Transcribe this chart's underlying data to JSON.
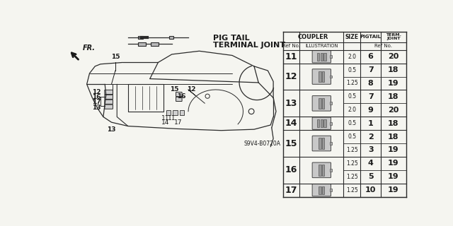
{
  "title1": "PIG TAIL",
  "title2": "TERMINAL JOINT",
  "diagram_code": "S9V4-B0720A",
  "bg_color": "#f5f5f0",
  "text_color": "#1a1a1a",
  "line_color": "#2a2a2a",
  "groups": [
    {
      "ref": "11",
      "sizes": [
        "2.0"
      ],
      "pigtails": [
        "6"
      ],
      "terms": [
        "20"
      ]
    },
    {
      "ref": "12",
      "sizes": [
        "0.5",
        "1.25"
      ],
      "pigtails": [
        "7",
        "8"
      ],
      "terms": [
        "18",
        "19"
      ]
    },
    {
      "ref": "13",
      "sizes": [
        "0.5",
        "2.0"
      ],
      "pigtails": [
        "7",
        "9"
      ],
      "terms": [
        "18",
        "20"
      ]
    },
    {
      "ref": "14",
      "sizes": [
        "0.5"
      ],
      "pigtails": [
        "1"
      ],
      "terms": [
        "18"
      ]
    },
    {
      "ref": "15",
      "sizes": [
        "0.5",
        "1.25"
      ],
      "pigtails": [
        "2",
        "3"
      ],
      "terms": [
        "18",
        "19"
      ]
    },
    {
      "ref": "16",
      "sizes": [
        "1.25",
        "1.25"
      ],
      "pigtails": [
        "4",
        "5"
      ],
      "terms": [
        "19",
        "19"
      ]
    },
    {
      "ref": "17",
      "sizes": [
        "1.25"
      ],
      "pigtails": [
        "10"
      ],
      "terms": [
        "19"
      ]
    }
  ]
}
